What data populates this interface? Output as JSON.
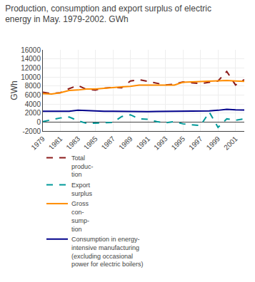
{
  "chart_data": {
    "type": "line",
    "title": "Production, consumption and export surplus of electric\nenergy in May. 1979-2002. GWh",
    "y_label": "GWh",
    "x": [
      1979,
      1980,
      1981,
      1982,
      1983,
      1984,
      1985,
      1986,
      1987,
      1988,
      1989,
      1990,
      1991,
      1992,
      1993,
      1994,
      1995,
      1996,
      1997,
      1998,
      1999,
      2000,
      2001,
      2002
    ],
    "series": [
      {
        "name": "Total\nproduc-\ntion",
        "color": "#8B1A1A",
        "line_style": "dashed",
        "values": [
          6600,
          6300,
          6500,
          7400,
          8100,
          7200,
          7100,
          7500,
          7700,
          7600,
          9100,
          9400,
          9000,
          8600,
          8200,
          8400,
          8900,
          8700,
          8500,
          8800,
          9100,
          11200,
          8200,
          9400
        ]
      },
      {
        "name": "Export\nsurplus",
        "color": "#009999",
        "line_style": "dashed",
        "values": [
          100,
          500,
          900,
          1100,
          300,
          -300,
          -200,
          -100,
          -100,
          1200,
          1600,
          700,
          600,
          100,
          -200,
          100,
          -400,
          -600,
          -800,
          2200,
          -1200,
          700,
          400,
          700
        ]
      },
      {
        "name": "Gross\ncon-\nsump-\ntion",
        "color": "#FF8C00",
        "line_style": "solid",
        "values": [
          6300,
          6200,
          6500,
          7000,
          7100,
          7300,
          7300,
          7500,
          7700,
          7800,
          7900,
          8200,
          8200,
          8200,
          8200,
          8200,
          8800,
          8900,
          8900,
          9000,
          9100,
          9200,
          9100,
          9000
        ]
      },
      {
        "name": "Consumption in energy-\nintensive manufacturing\n(excluding occasional\npower for electric boilers)",
        "color": "#00008B",
        "line_style": "solid",
        "values": [
          2400,
          2400,
          2450,
          2400,
          2600,
          2500,
          2400,
          2400,
          2400,
          2350,
          2350,
          2350,
          2300,
          2350,
          2350,
          2350,
          2350,
          2380,
          2380,
          2450,
          2600,
          2800,
          2700,
          2650
        ]
      }
    ],
    "xlim": [
      1979,
      2002
    ],
    "xticks": [
      1979,
      1981,
      1983,
      1985,
      1987,
      1989,
      1991,
      1993,
      1995,
      1997,
      1999,
      2001
    ],
    "ylim": [
      -2000,
      16000
    ],
    "yticks": [
      -2000,
      0,
      2000,
      4000,
      6000,
      8000,
      10000,
      12000,
      14000,
      16000
    ],
    "grid": true,
    "legend": "bottom"
  }
}
